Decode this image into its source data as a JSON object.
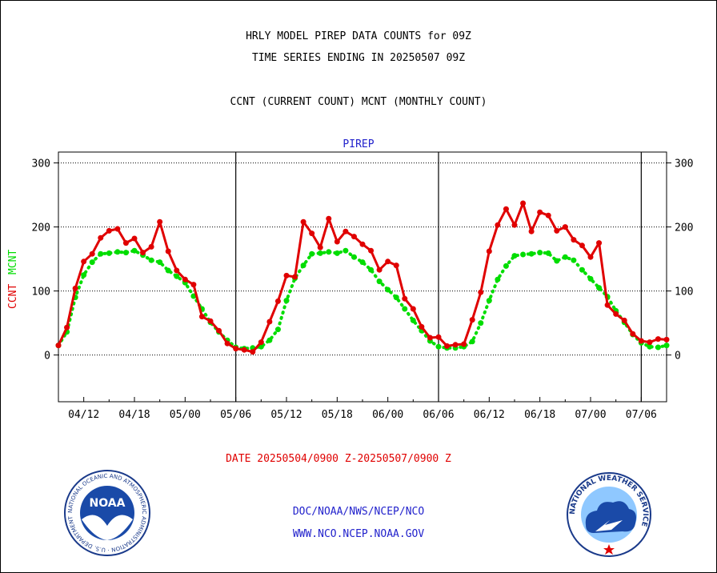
{
  "header": {
    "line1": "HRLY MODEL PIREP DATA COUNTS for 09Z",
    "line2": "TIME SERIES ENDING IN 20250507 09Z",
    "line3": "CCNT (CURRENT COUNT) MCNT (MONTHLY COUNT)"
  },
  "footer": {
    "date_range": "DATE 20250504/0900 Z-20250507/0900 Z",
    "org": "DOC/NOAA/NWS/NCEP/NCO",
    "url": "WWW.NCO.NCEP.NOAA.GOV"
  },
  "logos": {
    "noaa": "NOAA",
    "noaa_ring": "NATIONAL OCEANIC AND ATMOSPHERIC ADMINISTRATION · U.S. DEPARTMENT OF COMMERCE",
    "nws_ring": "NATIONAL WEATHER SERVICE"
  },
  "colors": {
    "ccnt": "#e00000",
    "mcnt": "#00dd00",
    "title": "#2222cc"
  },
  "chart_data": {
    "type": "line",
    "title": "PIREP",
    "ylabel_left_ccnt": "CCNT",
    "ylabel_left_mcnt": "MCNT",
    "ylim": [
      -73,
      317
    ],
    "yticks": [
      0,
      100,
      200,
      300
    ],
    "xtick_labels": [
      "04/12",
      "04/18",
      "05/00",
      "05/06",
      "05/12",
      "05/18",
      "06/00",
      "06/06",
      "06/12",
      "06/18",
      "07/00",
      "07/06"
    ],
    "day_separators_hours": [
      21,
      45,
      69
    ],
    "x_hours": [
      0,
      1,
      2,
      3,
      4,
      5,
      6,
      7,
      8,
      9,
      10,
      11,
      12,
      13,
      14,
      15,
      16,
      17,
      18,
      19,
      20,
      21,
      22,
      23,
      24,
      25,
      26,
      27,
      28,
      29,
      30,
      31,
      32,
      33,
      34,
      35,
      36,
      37,
      38,
      39,
      40,
      41,
      42,
      43,
      44,
      45,
      46,
      47,
      48,
      49,
      50,
      51,
      52,
      53,
      54,
      55,
      56,
      57,
      58,
      59,
      60,
      61,
      62,
      63,
      64,
      65,
      66,
      67,
      68,
      69,
      70,
      71,
      72
    ],
    "series": [
      {
        "name": "CCNT",
        "values": [
          15,
          43,
          104,
          146,
          158,
          183,
          194,
          197,
          175,
          182,
          160,
          169,
          208,
          162,
          132,
          118,
          110,
          60,
          53,
          38,
          18,
          10,
          8,
          5,
          20,
          52,
          84,
          124,
          122,
          208,
          190,
          168,
          213,
          177,
          193,
          185,
          173,
          163,
          133,
          146,
          140,
          88,
          72,
          44,
          27,
          28,
          14,
          16,
          17,
          55,
          98,
          162,
          203,
          228,
          203,
          237,
          193,
          223,
          218,
          194,
          200,
          180,
          171,
          153,
          175,
          78,
          64,
          54,
          33,
          22,
          20,
          25,
          24
        ]
      },
      {
        "name": "MCNT",
        "values": [
          15,
          36,
          90,
          125,
          145,
          158,
          159,
          161,
          160,
          163,
          156,
          148,
          145,
          132,
          123,
          113,
          92,
          72,
          51,
          36,
          23,
          12,
          10,
          11,
          13,
          23,
          40,
          85,
          120,
          140,
          158,
          159,
          161,
          159,
          163,
          153,
          145,
          133,
          115,
          102,
          90,
          72,
          54,
          38,
          22,
          13,
          11,
          11,
          13,
          21,
          50,
          85,
          118,
          139,
          155,
          157,
          158,
          160,
          159,
          147,
          153,
          148,
          133,
          119,
          105,
          91,
          69,
          51,
          32,
          19,
          13,
          12,
          15
        ]
      }
    ]
  }
}
